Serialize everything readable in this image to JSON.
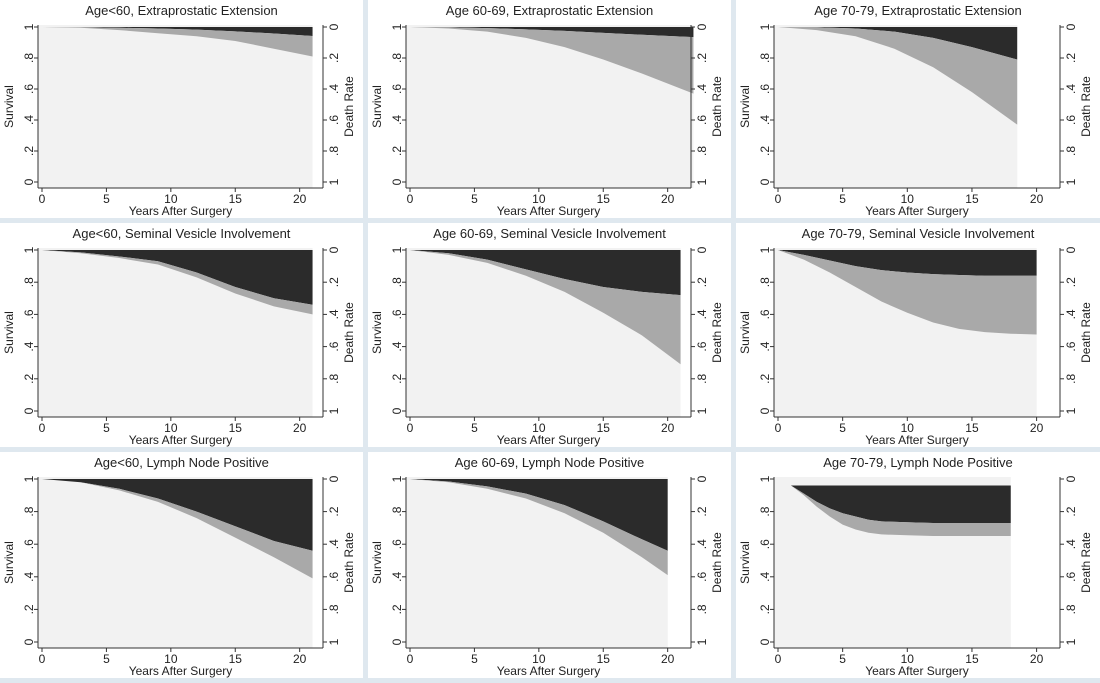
{
  "chart_data": [
    {
      "type": "area",
      "title": "Age<60, Extraprostatic Extension",
      "xlabel": "Years After Surgery",
      "ylabel": "Survival",
      "y2label": "Death Rate",
      "xlim": [
        0,
        21
      ],
      "xticks": [
        0,
        5,
        10,
        15,
        20
      ],
      "yticks": [
        "0",
        ".2",
        ".4",
        ".6",
        ".8",
        "1"
      ],
      "y2ticks": [
        "0",
        ".2",
        ".4",
        ".6",
        ".8",
        "1"
      ],
      "x": [
        0,
        3,
        6,
        9,
        12,
        15,
        18,
        21
      ],
      "overall_survival": [
        1.0,
        0.995,
        0.98,
        0.96,
        0.94,
        0.91,
        0.86,
        0.81
      ],
      "cancer_specific_survival": [
        1.0,
        0.999,
        0.995,
        0.99,
        0.983,
        0.972,
        0.958,
        0.942
      ]
    },
    {
      "type": "area",
      "title": "Age 60-69, Extraprostatic Extension",
      "xlabel": "Years After Surgery",
      "ylabel": "Survival",
      "y2label": "Death Rate",
      "xlim": [
        0,
        22
      ],
      "xticks": [
        0,
        5,
        10,
        15,
        20
      ],
      "yticks": [
        "0",
        ".2",
        ".4",
        ".6",
        ".8",
        "1"
      ],
      "y2ticks": [
        "0",
        ".2",
        ".4",
        ".6",
        ".8",
        "1"
      ],
      "x": [
        0,
        3,
        6,
        9,
        12,
        15,
        18,
        22
      ],
      "overall_survival": [
        1.0,
        0.99,
        0.97,
        0.93,
        0.87,
        0.79,
        0.7,
        0.57
      ],
      "cancer_specific_survival": [
        1.0,
        0.998,
        0.993,
        0.985,
        0.975,
        0.962,
        0.95,
        0.935
      ]
    },
    {
      "type": "area",
      "title": "Age 70-79, Extraprostatic Extension",
      "xlabel": "Years After Surgery",
      "ylabel": "Survival",
      "y2label": "Death Rate",
      "xlim": [
        0,
        18.5
      ],
      "xticks": [
        0,
        5,
        10,
        15,
        20
      ],
      "yticks": [
        "0",
        ".2",
        ".4",
        ".6",
        ".8",
        "1"
      ],
      "y2ticks": [
        "0",
        ".2",
        ".4",
        ".6",
        ".8",
        "1"
      ],
      "x": [
        0,
        3,
        6,
        9,
        12,
        15,
        18.5
      ],
      "overall_survival": [
        1.0,
        0.98,
        0.94,
        0.86,
        0.74,
        0.58,
        0.37
      ],
      "cancer_specific_survival": [
        1.0,
        0.998,
        0.99,
        0.97,
        0.93,
        0.87,
        0.79
      ]
    },
    {
      "type": "area",
      "title": "Age<60, Seminal Vesicle Involvement",
      "xlabel": "Years After Surgery",
      "ylabel": "Survival",
      "y2label": "Death Rate",
      "xlim": [
        0,
        21
      ],
      "xticks": [
        0,
        5,
        10,
        15,
        20
      ],
      "yticks": [
        "0",
        ".2",
        ".4",
        ".6",
        ".8",
        "1"
      ],
      "y2ticks": [
        "0",
        ".2",
        ".4",
        ".6",
        ".8",
        "1"
      ],
      "x": [
        0,
        3,
        6,
        9,
        12,
        15,
        18,
        21
      ],
      "overall_survival": [
        1.0,
        0.98,
        0.95,
        0.91,
        0.83,
        0.73,
        0.65,
        0.6
      ],
      "cancer_specific_survival": [
        1.0,
        0.985,
        0.96,
        0.93,
        0.86,
        0.77,
        0.7,
        0.66
      ]
    },
    {
      "type": "area",
      "title": "Age 60-69, Seminal Vesicle Involvement",
      "xlabel": "Years After Surgery",
      "ylabel": "Survival",
      "y2label": "Death Rate",
      "xlim": [
        0,
        21
      ],
      "xticks": [
        0,
        5,
        10,
        15,
        20
      ],
      "yticks": [
        "0",
        ".2",
        ".4",
        ".6",
        ".8",
        "1"
      ],
      "y2ticks": [
        "0",
        ".2",
        ".4",
        ".6",
        ".8",
        "1"
      ],
      "x": [
        0,
        3,
        6,
        9,
        12,
        15,
        18,
        21
      ],
      "overall_survival": [
        1.0,
        0.97,
        0.92,
        0.84,
        0.74,
        0.61,
        0.47,
        0.29
      ],
      "cancer_specific_survival": [
        1.0,
        0.98,
        0.94,
        0.88,
        0.82,
        0.77,
        0.74,
        0.72
      ]
    },
    {
      "type": "area",
      "title": "Age 70-79, Seminal Vesicle Involvement",
      "xlabel": "Years After Surgery",
      "ylabel": "Survival",
      "y2label": "Death Rate",
      "xlim": [
        0,
        20
      ],
      "xticks": [
        0,
        5,
        10,
        15,
        20
      ],
      "yticks": [
        "0",
        ".2",
        ".4",
        ".6",
        ".8",
        "1"
      ],
      "y2ticks": [
        "0",
        ".2",
        ".4",
        ".6",
        ".8",
        "1"
      ],
      "x": [
        0,
        2,
        4,
        6,
        8,
        10,
        12,
        14,
        16,
        18,
        20
      ],
      "overall_survival": [
        1.0,
        0.94,
        0.86,
        0.77,
        0.68,
        0.61,
        0.55,
        0.51,
        0.49,
        0.48,
        0.475
      ],
      "cancer_specific_survival": [
        1.0,
        0.97,
        0.935,
        0.9,
        0.875,
        0.86,
        0.85,
        0.845,
        0.84,
        0.84,
        0.84
      ]
    },
    {
      "type": "area",
      "title": "Age<60, Lymph Node Positive",
      "xlabel": "Years After Surgery",
      "ylabel": "Survival",
      "y2label": "Death Rate",
      "xlim": [
        0,
        21
      ],
      "xticks": [
        0,
        5,
        10,
        15,
        20
      ],
      "yticks": [
        "0",
        ".2",
        ".4",
        ".6",
        ".8",
        "1"
      ],
      "y2ticks": [
        "0",
        ".2",
        ".4",
        ".6",
        ".8",
        "1"
      ],
      "x": [
        0,
        3,
        6,
        9,
        12,
        15,
        18,
        21
      ],
      "overall_survival": [
        1.0,
        0.98,
        0.93,
        0.86,
        0.76,
        0.64,
        0.52,
        0.39
      ],
      "cancer_specific_survival": [
        1.0,
        0.98,
        0.94,
        0.88,
        0.8,
        0.71,
        0.62,
        0.56
      ]
    },
    {
      "type": "area",
      "title": "Age 60-69, Lymph Node Positive",
      "xlabel": "Years After Surgery",
      "ylabel": "Survival",
      "y2label": "Death Rate",
      "xlim": [
        0,
        20
      ],
      "xticks": [
        0,
        5,
        10,
        15,
        20
      ],
      "yticks": [
        "0",
        ".2",
        ".4",
        ".6",
        ".8",
        "1"
      ],
      "y2ticks": [
        "0",
        ".2",
        ".4",
        ".6",
        ".8",
        "1"
      ],
      "x": [
        0,
        3,
        6,
        9,
        12,
        15,
        18,
        20
      ],
      "overall_survival": [
        1.0,
        0.98,
        0.94,
        0.88,
        0.79,
        0.67,
        0.52,
        0.41
      ],
      "cancer_specific_survival": [
        1.0,
        0.985,
        0.955,
        0.91,
        0.84,
        0.74,
        0.63,
        0.56
      ]
    },
    {
      "type": "area",
      "title": "Age 70-79, Lymph Node Positive",
      "xlabel": "Years After Surgery",
      "ylabel": "Survival",
      "y2label": "Death Rate",
      "xlim": [
        0,
        18
      ],
      "xticks": [
        0,
        5,
        10,
        15,
        20
      ],
      "yticks": [
        "0",
        ".2",
        ".4",
        ".6",
        ".8",
        "1"
      ],
      "y2ticks": [
        "0",
        ".2",
        ".4",
        ".6",
        ".8",
        "1"
      ],
      "x": [
        1,
        2,
        3,
        4,
        5,
        6,
        7,
        8,
        10,
        12,
        14,
        16,
        18
      ],
      "overall_survival": [
        0.96,
        0.9,
        0.83,
        0.77,
        0.72,
        0.69,
        0.67,
        0.66,
        0.655,
        0.65,
        0.65,
        0.65,
        0.65
      ],
      "cancer_specific_survival": [
        0.96,
        0.91,
        0.86,
        0.82,
        0.79,
        0.77,
        0.75,
        0.74,
        0.735,
        0.73,
        0.73,
        0.73,
        0.73
      ],
      "top_level": 0.96
    }
  ]
}
